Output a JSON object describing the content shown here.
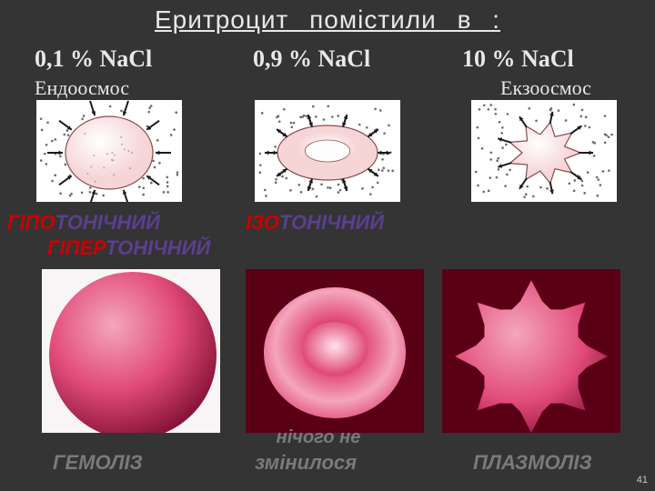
{
  "colors": {
    "background": "#343434",
    "text": "#e8e8e8",
    "prefix_red": "#cc0000",
    "suffix_purple": "#5a3f8f",
    "result_gray": "#7a7a7a",
    "cell_fill": "#f6d5d7",
    "cell_stroke": "#8a4a4a",
    "dot_color": "#6a6a6a",
    "arrow_color": "#1a1a1a",
    "photo_bg_dark": "#5a0015",
    "photo_cell": "#e14b7a",
    "photo_highlight": "#f4a6bd",
    "photo_shadow": "#8a1438"
  },
  "title": "Еритроцит помістили в :",
  "concentrations": {
    "c1": "0,1 % NaCl",
    "c2": "0,9 % NaCl",
    "c3": "10 % NaCl"
  },
  "osmosis": {
    "left": "Ендоосмос",
    "right": "Екзоосмос"
  },
  "tonicity": {
    "hypo": {
      "prefix": "ГІПО",
      "suffix": "ТОНІЧНИЙ"
    },
    "iso": {
      "prefix": "ІЗО",
      "suffix": "ТОНІЧНИЙ"
    },
    "hyper": {
      "prefix": "ГІПЕР",
      "suffix": "ТОНІЧНИЙ"
    }
  },
  "note_mid_line1": "нічого не",
  "note_mid_line2": "змінилося",
  "results": {
    "left": "ГЕМОЛІЗ",
    "right": "ПЛАЗМОЛІЗ"
  },
  "page": "41",
  "diagrams": {
    "arrow_stroke_width": 2,
    "arrow_head": 5,
    "dot_radius": 1.3
  }
}
